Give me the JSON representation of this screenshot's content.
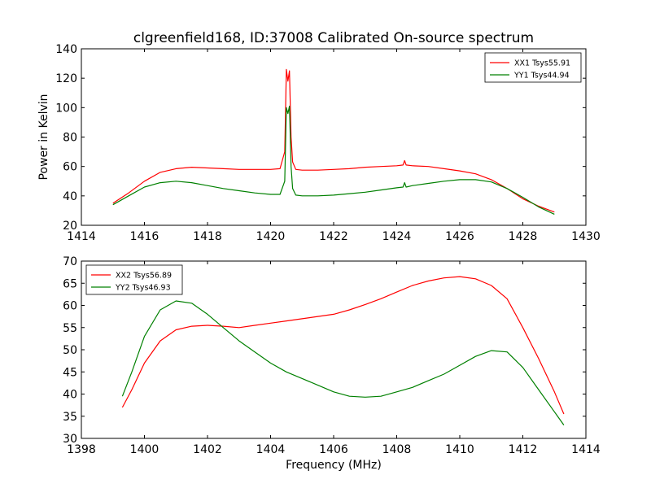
{
  "title": "clgreenfield168, ID:37008 Calibrated On-source spectrum",
  "chart_data": [
    {
      "type": "line",
      "ylabel": "Power in Kelvin",
      "xlabel": "",
      "xlim": [
        1414,
        1430
      ],
      "ylim": [
        20,
        140
      ],
      "xticks": [
        "1414",
        "1416",
        "1418",
        "1420",
        "1422",
        "1424",
        "1426",
        "1428",
        "1430"
      ],
      "yticks": [
        "20",
        "40",
        "60",
        "80",
        "100",
        "120",
        "140"
      ],
      "legend_position": "top-right",
      "series": [
        {
          "name": "XX1 Tsys55.91",
          "color": "#ff0000",
          "x": [
            1415.0,
            1415.5,
            1416.0,
            1416.5,
            1417.0,
            1417.5,
            1418.0,
            1418.5,
            1419.0,
            1419.5,
            1420.0,
            1420.3,
            1420.45,
            1420.5,
            1420.55,
            1420.6,
            1420.65,
            1420.7,
            1420.8,
            1421.0,
            1421.5,
            1422.0,
            1422.5,
            1423.0,
            1423.5,
            1424.0,
            1424.2,
            1424.25,
            1424.3,
            1424.5,
            1425.0,
            1425.5,
            1426.0,
            1426.5,
            1427.0,
            1427.5,
            1428.0,
            1428.5,
            1429.0
          ],
          "y": [
            35,
            42,
            50,
            56,
            58.5,
            59.5,
            59,
            58.5,
            58,
            58,
            58,
            58.5,
            70,
            126,
            118,
            125,
            80,
            63,
            58,
            57.5,
            57.5,
            58,
            58.5,
            59.5,
            60,
            60.5,
            61,
            64,
            61,
            60.5,
            60,
            58.5,
            57,
            55,
            51,
            45,
            38,
            33,
            29
          ]
        },
        {
          "name": "YY1 Tsys44.94",
          "color": "#008000",
          "x": [
            1415.0,
            1415.5,
            1416.0,
            1416.5,
            1417.0,
            1417.5,
            1418.0,
            1418.5,
            1419.0,
            1419.5,
            1420.0,
            1420.3,
            1420.45,
            1420.5,
            1420.55,
            1420.6,
            1420.65,
            1420.7,
            1420.8,
            1421.0,
            1421.5,
            1422.0,
            1422.5,
            1423.0,
            1423.5,
            1424.0,
            1424.2,
            1424.25,
            1424.3,
            1424.5,
            1425.0,
            1425.5,
            1426.0,
            1426.5,
            1427.0,
            1427.5,
            1428.0,
            1428.5,
            1429.0
          ],
          "y": [
            34,
            40,
            46,
            49,
            50,
            49,
            47,
            45,
            43.5,
            42,
            41,
            41,
            50,
            100,
            96,
            101,
            60,
            45,
            40.5,
            40,
            40,
            40.5,
            41.5,
            42.5,
            44,
            45.5,
            46,
            49,
            46,
            47,
            48.5,
            50,
            51,
            51,
            49.5,
            45,
            39,
            32.5,
            27.5
          ]
        }
      ]
    },
    {
      "type": "line",
      "ylabel": "",
      "xlabel": "Frequency (MHz)",
      "xlim": [
        1398,
        1414
      ],
      "ylim": [
        30,
        70
      ],
      "xticks": [
        "1398",
        "1400",
        "1402",
        "1404",
        "1406",
        "1408",
        "1410",
        "1412",
        "1414"
      ],
      "yticks": [
        "30",
        "35",
        "40",
        "45",
        "50",
        "55",
        "60",
        "65",
        "70"
      ],
      "legend_position": "top-left",
      "series": [
        {
          "name": "XX2 Tsys56.89",
          "color": "#ff0000",
          "x": [
            1399.3,
            1399.6,
            1400.0,
            1400.5,
            1401.0,
            1401.5,
            1402.0,
            1402.5,
            1403.0,
            1403.5,
            1404.0,
            1404.5,
            1405.0,
            1405.5,
            1406.0,
            1406.5,
            1407.0,
            1407.5,
            1408.0,
            1408.5,
            1409.0,
            1409.5,
            1410.0,
            1410.5,
            1411.0,
            1411.5,
            1412.0,
            1412.5,
            1413.0,
            1413.3
          ],
          "y": [
            37,
            41,
            47,
            52,
            54.5,
            55.3,
            55.5,
            55.3,
            55,
            55.5,
            56,
            56.5,
            57,
            57.5,
            58,
            59,
            60.2,
            61.5,
            63,
            64.5,
            65.5,
            66.2,
            66.5,
            66,
            64.5,
            61.5,
            55,
            48,
            40.5,
            35.5
          ]
        },
        {
          "name": "YY2 Tsys46.93",
          "color": "#008000",
          "x": [
            1399.3,
            1399.6,
            1400.0,
            1400.5,
            1401.0,
            1401.5,
            1402.0,
            1402.5,
            1403.0,
            1403.5,
            1404.0,
            1404.5,
            1405.0,
            1405.5,
            1406.0,
            1406.5,
            1407.0,
            1407.5,
            1408.0,
            1408.5,
            1409.0,
            1409.5,
            1410.0,
            1410.5,
            1411.0,
            1411.5,
            1412.0,
            1412.5,
            1413.0,
            1413.3
          ],
          "y": [
            39.5,
            45,
            53,
            59,
            61,
            60.5,
            58,
            55,
            52,
            49.5,
            47,
            45,
            43.5,
            42,
            40.5,
            39.5,
            39.3,
            39.5,
            40.5,
            41.5,
            43,
            44.5,
            46.5,
            48.5,
            49.8,
            49.5,
            46,
            41,
            36,
            33
          ]
        }
      ]
    }
  ]
}
